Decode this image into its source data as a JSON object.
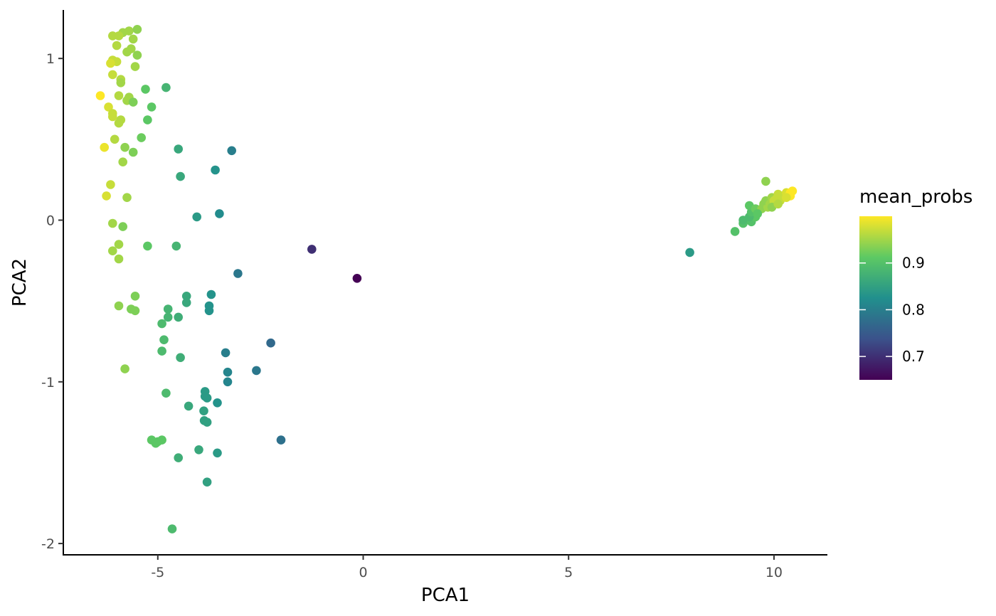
{
  "chart_data": {
    "type": "scatter",
    "title": "",
    "xlabel": "PCA1",
    "ylabel": "PCA2",
    "xlim": [
      -7.3,
      11.3
    ],
    "ylim": [
      -2.07,
      1.3
    ],
    "xticks": [
      -5,
      0,
      5,
      10
    ],
    "yticks": [
      -2,
      -1,
      0,
      1
    ],
    "xtick_labels": [
      "-5",
      "0",
      "5",
      "10"
    ],
    "ytick_labels": [
      "-2",
      "-1",
      "0",
      "1"
    ],
    "grid": false,
    "legend": {
      "title": "mean_probs",
      "type": "colorbar",
      "placement": "right",
      "range": [
        0.65,
        1.0
      ],
      "ticks": [
        0.7,
        0.8,
        0.9
      ],
      "tick_labels": [
        "0.7",
        "0.8",
        "0.9"
      ],
      "colormap": [
        "#440154",
        "#3b528b",
        "#21908d",
        "#5dc963",
        "#fde725"
      ]
    },
    "points": [
      [
        -6.4,
        0.77,
        1.0
      ],
      [
        -6.1,
        1.14,
        0.96
      ],
      [
        -5.85,
        1.16,
        0.95
      ],
      [
        -5.7,
        1.17,
        0.95
      ],
      [
        -5.5,
        1.18,
        0.94
      ],
      [
        -5.95,
        1.14,
        0.96
      ],
      [
        -5.6,
        1.12,
        0.95
      ],
      [
        -6.0,
        1.08,
        0.96
      ],
      [
        -5.75,
        1.04,
        0.95
      ],
      [
        -5.65,
        1.06,
        0.95
      ],
      [
        -5.5,
        1.02,
        0.94
      ],
      [
        -6.1,
        0.99,
        0.97
      ],
      [
        -6.0,
        0.98,
        0.97
      ],
      [
        -6.15,
        0.97,
        0.98
      ],
      [
        -5.55,
        0.95,
        0.95
      ],
      [
        -6.1,
        0.9,
        0.97
      ],
      [
        -5.9,
        0.87,
        0.96
      ],
      [
        -5.9,
        0.85,
        0.95
      ],
      [
        -5.3,
        0.81,
        0.91
      ],
      [
        -4.8,
        0.82,
        0.88
      ],
      [
        -5.95,
        0.77,
        0.96
      ],
      [
        -5.7,
        0.76,
        0.95
      ],
      [
        -5.75,
        0.74,
        0.95
      ],
      [
        -5.6,
        0.73,
        0.93
      ],
      [
        -6.2,
        0.7,
        0.98
      ],
      [
        -5.15,
        0.7,
        0.91
      ],
      [
        -6.1,
        0.66,
        0.97
      ],
      [
        -6.1,
        0.64,
        0.97
      ],
      [
        -5.9,
        0.62,
        0.96
      ],
      [
        -5.25,
        0.62,
        0.91
      ],
      [
        -5.95,
        0.6,
        0.96
      ],
      [
        -5.4,
        0.51,
        0.92
      ],
      [
        -6.05,
        0.5,
        0.96
      ],
      [
        -6.3,
        0.45,
        0.99
      ],
      [
        -5.8,
        0.45,
        0.94
      ],
      [
        -4.5,
        0.44,
        0.86
      ],
      [
        -5.6,
        0.42,
        0.93
      ],
      [
        -3.2,
        0.43,
        0.8
      ],
      [
        -5.85,
        0.36,
        0.95
      ],
      [
        -3.6,
        0.31,
        0.83
      ],
      [
        -4.45,
        0.27,
        0.86
      ],
      [
        -6.15,
        0.22,
        0.97
      ],
      [
        -6.25,
        0.15,
        0.98
      ],
      [
        -5.75,
        0.14,
        0.95
      ],
      [
        -3.5,
        0.04,
        0.82
      ],
      [
        -4.05,
        0.02,
        0.84
      ],
      [
        -6.1,
        -0.02,
        0.95
      ],
      [
        -5.85,
        -0.04,
        0.93
      ],
      [
        -5.95,
        -0.15,
        0.95
      ],
      [
        -5.25,
        -0.16,
        0.91
      ],
      [
        -4.55,
        -0.16,
        0.88
      ],
      [
        -6.1,
        -0.19,
        0.95
      ],
      [
        -5.95,
        -0.24,
        0.95
      ],
      [
        -1.25,
        -0.18,
        0.7
      ],
      [
        -3.05,
        -0.33,
        0.79
      ],
      [
        -0.15,
        -0.36,
        0.65
      ],
      [
        -5.55,
        -0.47,
        0.93
      ],
      [
        -4.3,
        -0.47,
        0.86
      ],
      [
        -3.7,
        -0.46,
        0.83
      ],
      [
        -4.3,
        -0.51,
        0.86
      ],
      [
        -3.75,
        -0.53,
        0.83
      ],
      [
        -5.95,
        -0.53,
        0.94
      ],
      [
        -5.65,
        -0.55,
        0.93
      ],
      [
        -5.55,
        -0.56,
        0.93
      ],
      [
        -4.75,
        -0.55,
        0.88
      ],
      [
        -3.75,
        -0.56,
        0.83
      ],
      [
        -4.75,
        -0.6,
        0.88
      ],
      [
        -4.5,
        -0.6,
        0.87
      ],
      [
        -4.9,
        -0.64,
        0.89
      ],
      [
        -4.85,
        -0.74,
        0.89
      ],
      [
        -4.9,
        -0.81,
        0.89
      ],
      [
        -3.35,
        -0.82,
        0.8
      ],
      [
        -4.45,
        -0.85,
        0.87
      ],
      [
        -2.25,
        -0.76,
        0.77
      ],
      [
        -5.8,
        -0.92,
        0.94
      ],
      [
        -3.3,
        -0.94,
        0.81
      ],
      [
        -2.6,
        -0.93,
        0.79
      ],
      [
        -3.3,
        -1.0,
        0.81
      ],
      [
        -4.8,
        -1.07,
        0.89
      ],
      [
        -3.85,
        -1.06,
        0.84
      ],
      [
        -3.85,
        -1.09,
        0.84
      ],
      [
        -3.8,
        -1.1,
        0.84
      ],
      [
        -3.55,
        -1.13,
        0.83
      ],
      [
        -4.25,
        -1.15,
        0.86
      ],
      [
        -3.88,
        -1.18,
        0.85
      ],
      [
        -3.87,
        -1.24,
        0.85
      ],
      [
        -3.8,
        -1.25,
        0.85
      ],
      [
        -2.0,
        -1.36,
        0.78
      ],
      [
        -5.15,
        -1.36,
        0.91
      ],
      [
        -5.05,
        -1.38,
        0.91
      ],
      [
        -5.0,
        -1.37,
        0.91
      ],
      [
        -4.9,
        -1.36,
        0.91
      ],
      [
        -4.0,
        -1.42,
        0.86
      ],
      [
        -3.55,
        -1.44,
        0.84
      ],
      [
        -4.5,
        -1.47,
        0.87
      ],
      [
        -3.8,
        -1.62,
        0.85
      ],
      [
        -4.65,
        -1.91,
        0.89
      ],
      [
        7.95,
        -0.2,
        0.84
      ],
      [
        9.05,
        -0.07,
        0.9
      ],
      [
        9.25,
        -0.02,
        0.9
      ],
      [
        9.25,
        0.0,
        0.89
      ],
      [
        9.45,
        -0.01,
        0.9
      ],
      [
        9.55,
        0.02,
        0.91
      ],
      [
        9.4,
        0.02,
        0.89
      ],
      [
        9.45,
        0.05,
        0.9
      ],
      [
        9.4,
        0.09,
        0.91
      ],
      [
        9.55,
        0.07,
        0.92
      ],
      [
        9.7,
        0.07,
        0.94
      ],
      [
        9.75,
        0.1,
        0.94
      ],
      [
        9.85,
        0.08,
        0.95
      ],
      [
        9.8,
        0.12,
        0.94
      ],
      [
        9.9,
        0.1,
        0.95
      ],
      [
        9.95,
        0.14,
        0.95
      ],
      [
        10.0,
        0.11,
        0.96
      ],
      [
        10.05,
        0.13,
        0.97
      ],
      [
        10.1,
        0.16,
        0.97
      ],
      [
        10.15,
        0.12,
        0.97
      ],
      [
        10.2,
        0.15,
        0.97
      ],
      [
        10.3,
        0.17,
        0.98
      ],
      [
        10.35,
        0.15,
        0.99
      ],
      [
        10.4,
        0.17,
        1.0
      ],
      [
        10.45,
        0.18,
        1.0
      ],
      [
        10.4,
        0.15,
        1.0
      ],
      [
        9.8,
        0.24,
        0.94
      ],
      [
        9.6,
        0.04,
        0.91
      ],
      [
        10.0,
        0.12,
        0.97
      ],
      [
        9.95,
        0.08,
        0.94
      ],
      [
        10.1,
        0.1,
        0.96
      ],
      [
        10.3,
        0.14,
        0.98
      ]
    ]
  }
}
